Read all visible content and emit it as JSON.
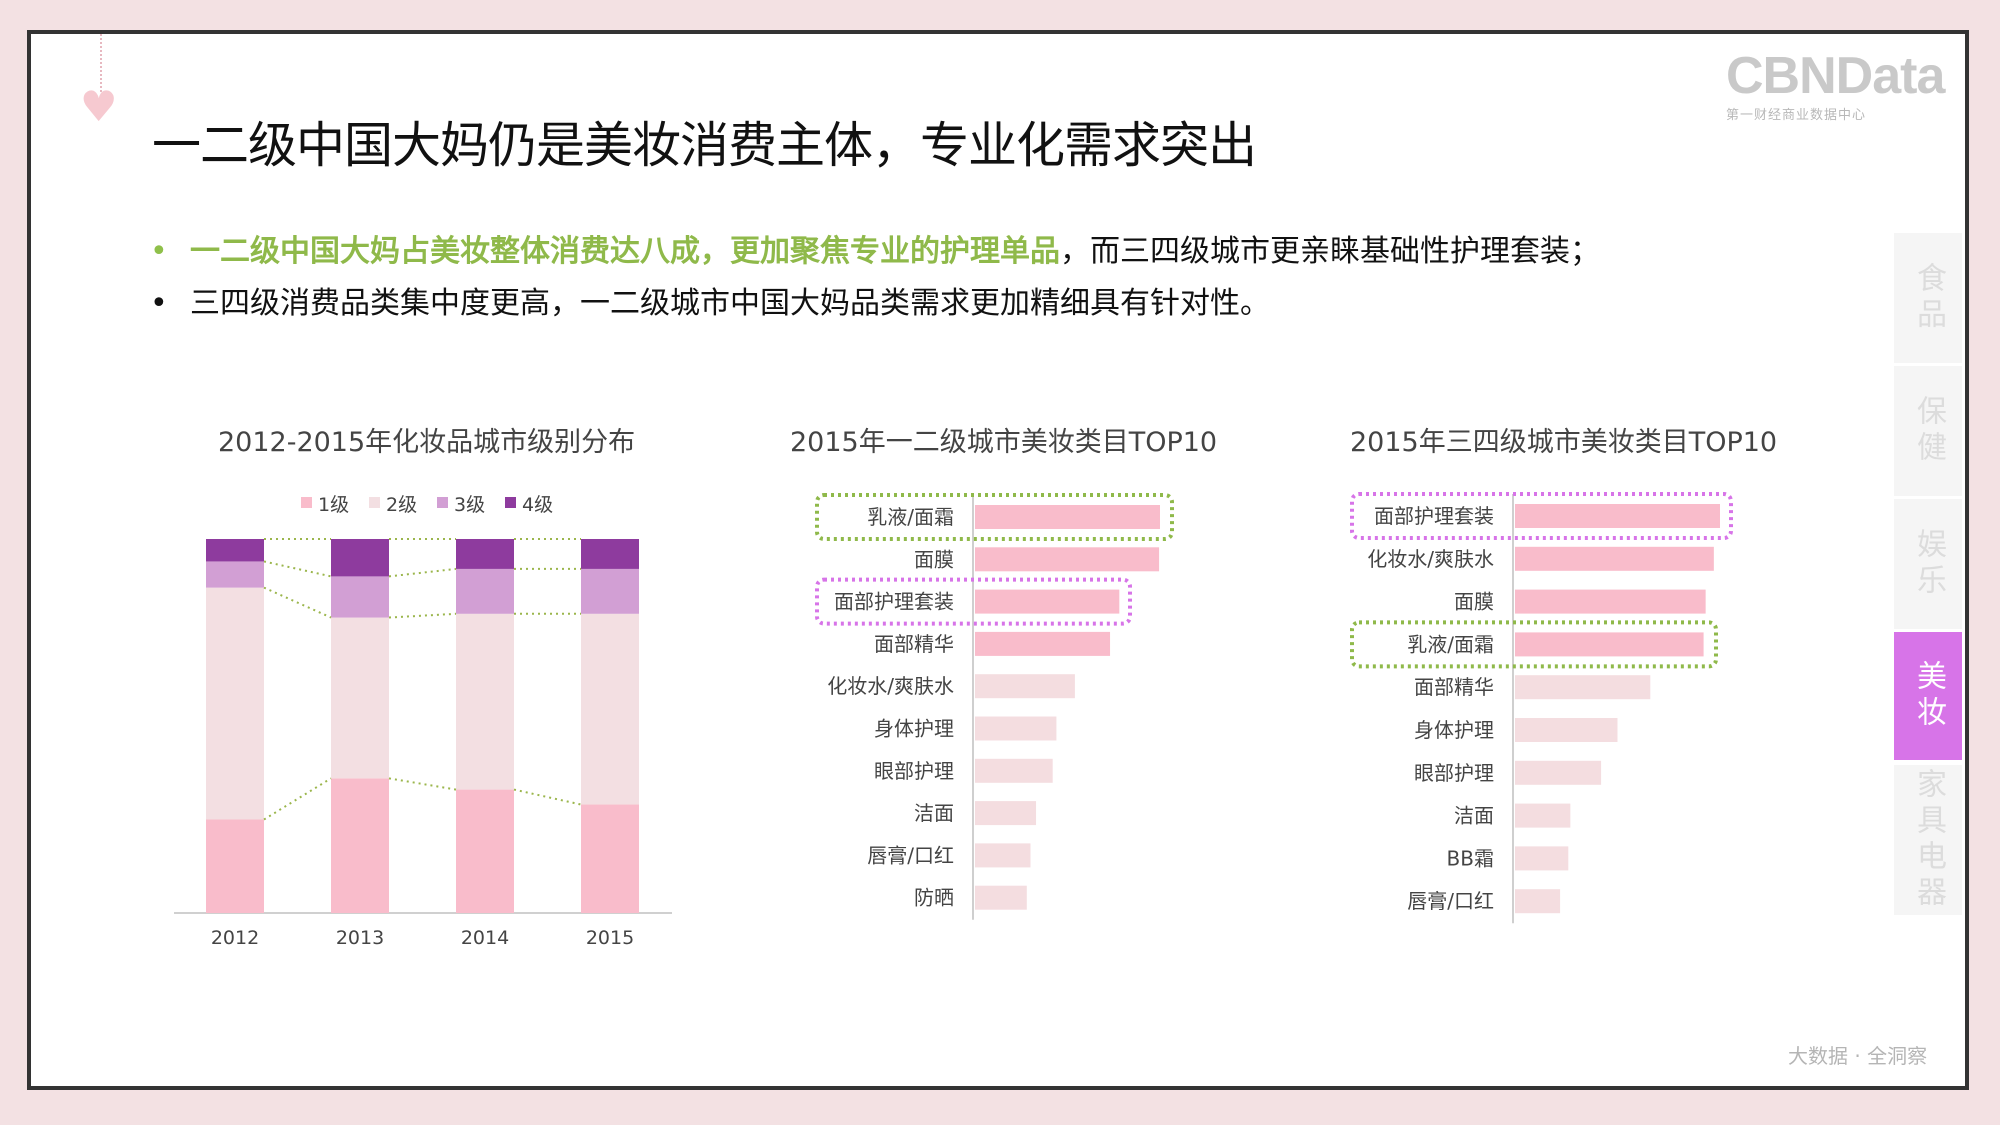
{
  "page": {
    "title": "一二级中国大妈仍是美妆消费主体，专业化需求突出",
    "logo": {
      "brand": "CBNData",
      "sub": "第一财经商业数据中心"
    },
    "bullets": [
      {
        "highlight": "一二级中国大妈占美妆整体消费达八成，更加聚焦专业的护理单品",
        "rest": "，而三四级城市更亲睐基础性护理套装；"
      },
      {
        "highlight": "",
        "rest": "三四级消费品类集中度更高，一二级城市中国大妈品类需求更加精细具有针对性。"
      }
    ],
    "side_tabs": [
      {
        "label": "食品",
        "active": false
      },
      {
        "label": "保健",
        "active": false
      },
      {
        "label": "娱乐",
        "active": false
      },
      {
        "label": "美妆",
        "active": true
      },
      {
        "label": "家具电器",
        "active": false
      }
    ],
    "footer": "大数据 · 全洞察",
    "colors": {
      "tier1": "#f9bccb",
      "tier2": "#f3dfe2",
      "tier3": "#d29fd4",
      "tier4": "#8e3b9e",
      "bar_top": "#f9bccb",
      "bar_rest": "#f4dde0",
      "highlight_green": "#8fb94a",
      "highlight_purple": "#d774e8",
      "tab_active": "#d774e8"
    }
  },
  "chart_data": [
    {
      "type": "bar",
      "stacked": true,
      "title": "2012-2015年化妆品城市级别分布",
      "categories": [
        "2012",
        "2013",
        "2014",
        "2015"
      ],
      "series": [
        {
          "name": "1级",
          "values": [
            25,
            36,
            33,
            29
          ]
        },
        {
          "name": "2级",
          "values": [
            62,
            43,
            47,
            51
          ]
        },
        {
          "name": "3级",
          "values": [
            7,
            11,
            12,
            12
          ]
        },
        {
          "name": "4级",
          "values": [
            6,
            10,
            8,
            8
          ]
        }
      ],
      "ylim": [
        0,
        100
      ],
      "legend": "top"
    },
    {
      "type": "bar",
      "orientation": "horizontal",
      "title": "2015年一二级城市美妆类目TOP10",
      "categories": [
        "乳液/面霜",
        "面膜",
        "面部护理套装",
        "面部精华",
        "化妆水/爽肤水",
        "身体护理",
        "眼部护理",
        "洁面",
        "唇膏/口红",
        "防晒"
      ],
      "values": [
        100,
        99.5,
        78,
        73,
        54,
        44,
        42,
        33,
        30,
        28
      ],
      "highlight_green": [
        "乳液/面霜"
      ],
      "highlight_purple": [
        "面部护理套装"
      ]
    },
    {
      "type": "bar",
      "orientation": "horizontal",
      "title": "2015年三四级城市美妆类目TOP10",
      "categories": [
        "面部护理套装",
        "化妆水/爽肤水",
        "面膜",
        "乳液/面霜",
        "面部精华",
        "身体护理",
        "眼部护理",
        "洁面",
        "BB霜",
        "唇膏/口红"
      ],
      "values": [
        100,
        97,
        93,
        92,
        66,
        50,
        42,
        27,
        26,
        22
      ],
      "highlight_purple": [
        "面部护理套装"
      ],
      "highlight_green": [
        "乳液/面霜"
      ]
    }
  ]
}
